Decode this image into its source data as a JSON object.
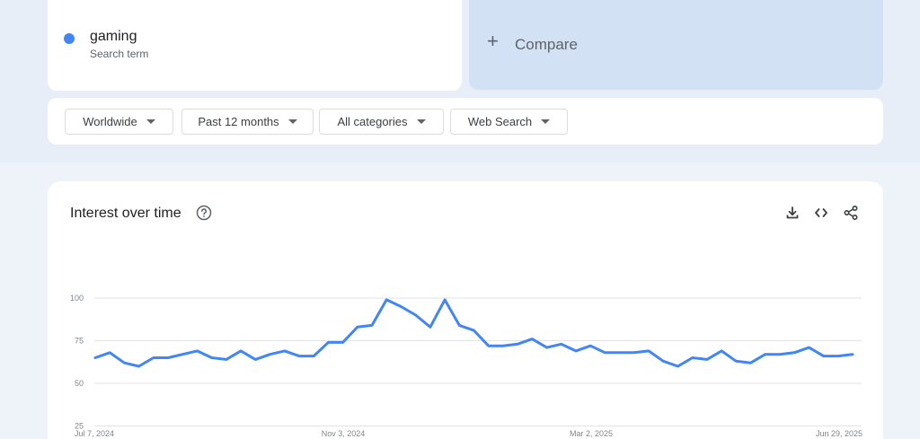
{
  "search_term": {
    "name": "gaming",
    "label": "Search term",
    "color": "#4285f4"
  },
  "compare": {
    "icon": "plus-icon",
    "label": "Compare"
  },
  "filters": [
    {
      "label": "Worldwide"
    },
    {
      "label": "Past 12 months"
    },
    {
      "label": "All categories"
    },
    {
      "label": "Web Search"
    }
  ],
  "chart": {
    "title": "Interest over time",
    "toolbar_icons": [
      "download-icon",
      "embed-code-icon",
      "share-icon"
    ]
  },
  "chart_data": {
    "type": "line",
    "title": "Interest over time",
    "x_tick_labels": [
      "Jul 7, 2024",
      "Nov 3, 2024",
      "Mar 2, 2025",
      "Jun 29, 2025"
    ],
    "y_ticks": [
      25,
      50,
      75,
      100
    ],
    "ylim": [
      0,
      100
    ],
    "grid": true,
    "series": [
      {
        "name": "gaming",
        "color": "#4285f4",
        "values": [
          65,
          68,
          62,
          60,
          65,
          65,
          67,
          69,
          65,
          64,
          69,
          64,
          67,
          69,
          66,
          66,
          74,
          74,
          83,
          84,
          99,
          95,
          90,
          83,
          99,
          84,
          81,
          72,
          72,
          73,
          76,
          71,
          73,
          69,
          72,
          68,
          68,
          68,
          69,
          63,
          60,
          65,
          64,
          69,
          63,
          62,
          67,
          67,
          68,
          71,
          66,
          66,
          67
        ]
      }
    ]
  }
}
